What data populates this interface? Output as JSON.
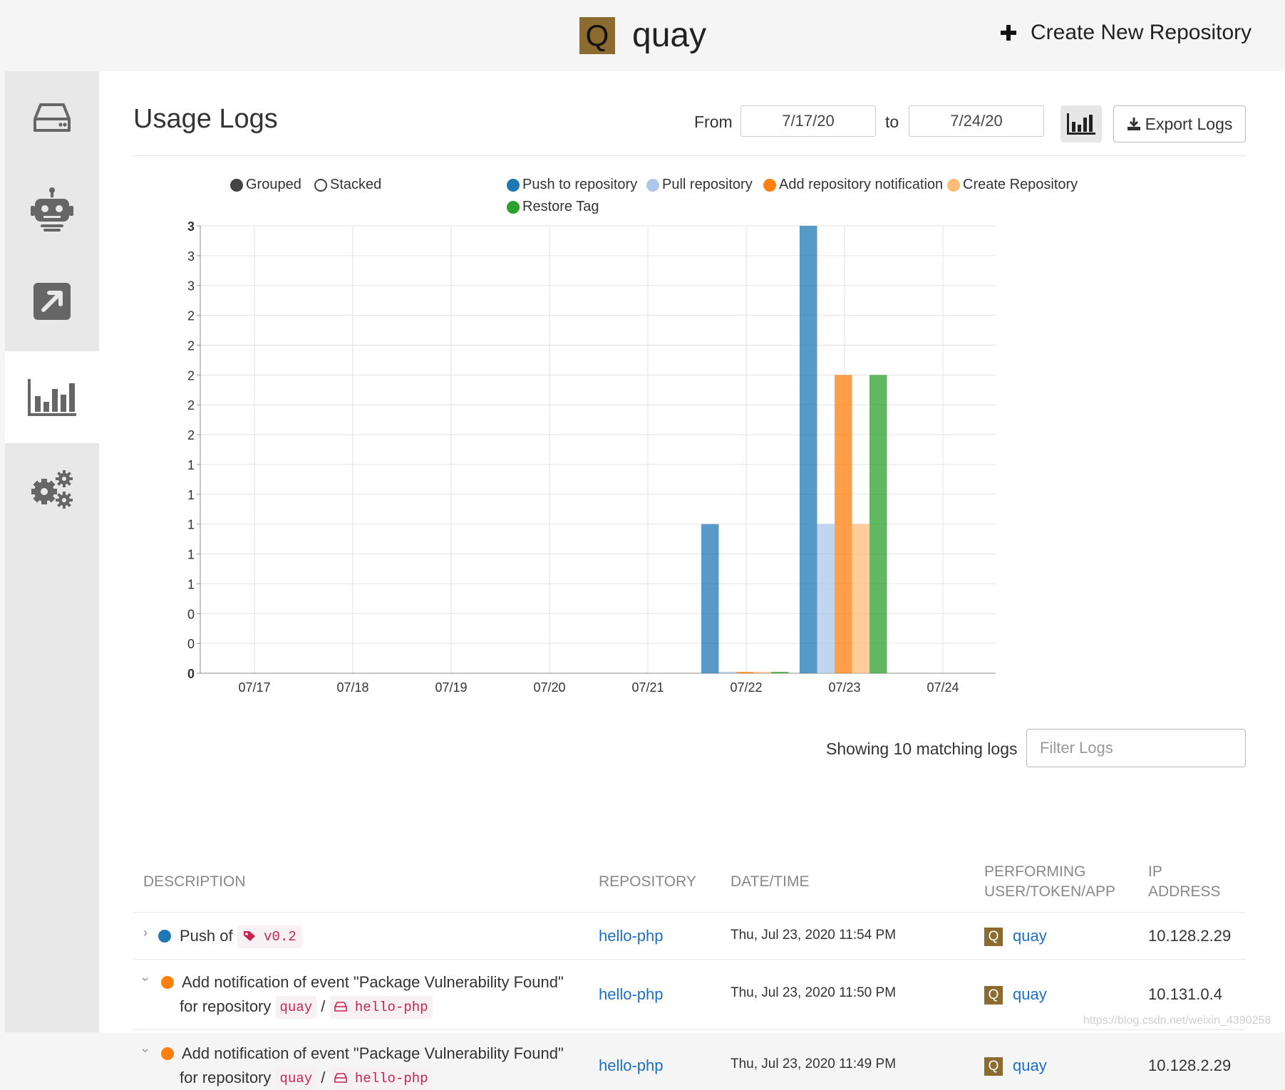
{
  "header": {
    "brand_initial": "Q",
    "brand_name": "quay",
    "create_label": "Create New Repository"
  },
  "sidebar": {
    "items": [
      {
        "name": "repositories",
        "icon": "hard-drive-icon"
      },
      {
        "name": "robot-accounts",
        "icon": "robot-icon"
      },
      {
        "name": "external-logins",
        "icon": "external-link-icon"
      },
      {
        "name": "usage-logs",
        "icon": "bar-chart-icon",
        "active": true
      },
      {
        "name": "settings",
        "icon": "gears-icon"
      }
    ]
  },
  "usage": {
    "title": "Usage Logs",
    "from_label": "From",
    "from_value": "7/17/20",
    "to_label": "to",
    "to_value": "7/24/20",
    "export_label": "Export Logs"
  },
  "legend": {
    "grouped": "Grouped",
    "stacked": "Stacked",
    "series": [
      {
        "name": "Push to repository",
        "color": "#1f77b4"
      },
      {
        "name": "Pull repository",
        "color": "#aec7e8"
      },
      {
        "name": "Add repository notification",
        "color": "#ff7f0e"
      },
      {
        "name": "Create Repository",
        "color": "#ffbb78"
      },
      {
        "name": "Restore Tag",
        "color": "#2ca02c"
      }
    ]
  },
  "chart_data": {
    "type": "bar",
    "mode": "grouped",
    "categories": [
      "07/17",
      "07/18",
      "07/19",
      "07/20",
      "07/21",
      "07/22",
      "07/23",
      "07/24"
    ],
    "y_tick_labels": [
      "0",
      "0",
      "0",
      "1",
      "1",
      "1",
      "1",
      "1",
      "2",
      "2",
      "2",
      "2",
      "2",
      "3",
      "3",
      "3"
    ],
    "ylim": [
      0,
      3
    ],
    "grid": true,
    "legend_position": "top",
    "series": [
      {
        "name": "Push to repository",
        "color": "#1f77b4",
        "values": [
          0,
          0,
          0,
          0,
          0,
          1,
          3,
          0
        ]
      },
      {
        "name": "Pull repository",
        "color": "#aec7e8",
        "values": [
          0,
          0,
          0,
          0,
          0,
          0,
          1,
          0
        ]
      },
      {
        "name": "Add repository notification",
        "color": "#ff7f0e",
        "values": [
          0,
          0,
          0,
          0,
          0,
          0,
          2,
          0
        ]
      },
      {
        "name": "Create Repository",
        "color": "#ffbb78",
        "values": [
          0,
          0,
          0,
          0,
          0,
          0,
          1,
          0
        ]
      },
      {
        "name": "Restore Tag",
        "color": "#2ca02c",
        "values": [
          0,
          0,
          0,
          0,
          0,
          0,
          2,
          0
        ]
      }
    ]
  },
  "filter": {
    "showing_text": "Showing 10 matching logs",
    "placeholder": "Filter Logs"
  },
  "table": {
    "headers": {
      "description": "DESCRIPTION",
      "repository": "REPOSITORY",
      "datetime": "DATE/TIME",
      "performing_line1": "PERFORMING",
      "performing_line2": "USER/TOKEN/APP",
      "ip_line1": "IP",
      "ip_line2": "ADDRESS"
    },
    "rows": [
      {
        "color": "#1f77b4",
        "text": "Push of",
        "tag": "v0.2",
        "repository": "hello-php",
        "datetime": "Thu, Jul 23, 2020 11:54 PM",
        "user_initial": "Q",
        "user": "quay",
        "ip": "10.128.2.29"
      },
      {
        "color": "#ff7f0e",
        "line1": "Add notification of event \"Package Vulnerability Found\"",
        "line2": "for repository",
        "ns": "quay",
        "sep": "/",
        "repo": "hello-php",
        "repository": "hello-php",
        "datetime": "Thu, Jul 23, 2020 11:50 PM",
        "user_initial": "Q",
        "user": "quay",
        "ip": "10.131.0.4"
      },
      {
        "color": "#ff7f0e",
        "line1": "Add notification of event \"Package Vulnerability Found\"",
        "line2": "for repository",
        "ns": "quay",
        "sep": "/",
        "repo": "hello-php",
        "repository": "hello-php",
        "datetime": "Thu, Jul 23, 2020 11:49 PM",
        "user_initial": "Q",
        "user": "quay",
        "ip": "10.128.2.29"
      }
    ]
  },
  "watermark": "https://blog.csdn.net/weixin_4390258"
}
